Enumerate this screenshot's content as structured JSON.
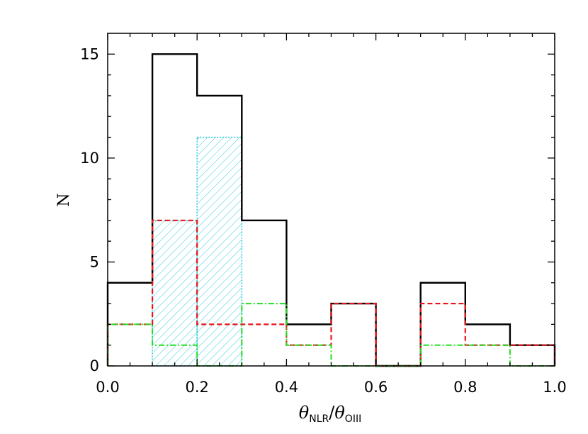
{
  "chart_data": {
    "type": "histogram",
    "xlabel": {
      "symbol": "θ",
      "sub1": "NLR",
      "sep": "/",
      "sub2": "OIII"
    },
    "ylabel": "N",
    "xlim": [
      0.0,
      1.0
    ],
    "ylim": [
      0,
      16
    ],
    "bin_edges": [
      0.0,
      0.1,
      0.2,
      0.3,
      0.4,
      0.5,
      0.6,
      0.7,
      0.8,
      0.9,
      1.0
    ],
    "x_ticks": [
      0.0,
      0.2,
      0.4,
      0.6,
      0.8,
      1.0
    ],
    "x_tick_labels": [
      "0.0",
      "0.2",
      "0.4",
      "0.6",
      "0.8",
      "1.0"
    ],
    "y_ticks": [
      0,
      5,
      10,
      15
    ],
    "y_tick_labels": [
      "0",
      "5",
      "10",
      "15"
    ],
    "series": [
      {
        "style": "solid",
        "color": "#000000",
        "values": [
          4,
          15,
          13,
          7,
          2,
          3,
          0,
          4,
          2,
          1
        ]
      },
      {
        "style": "dashed",
        "color": "#e8141b",
        "values": [
          2,
          7,
          2,
          2,
          1,
          3,
          0,
          3,
          1,
          1
        ]
      },
      {
        "style": "dashdot",
        "color": "#22dd22",
        "values": [
          2,
          1,
          0,
          3,
          1,
          0,
          0,
          1,
          1,
          0
        ]
      },
      {
        "style": "dotted-hatched",
        "color": "#33ccdd",
        "values": [
          0,
          7,
          11,
          0,
          0,
          0,
          0,
          0,
          0,
          0
        ]
      }
    ]
  }
}
